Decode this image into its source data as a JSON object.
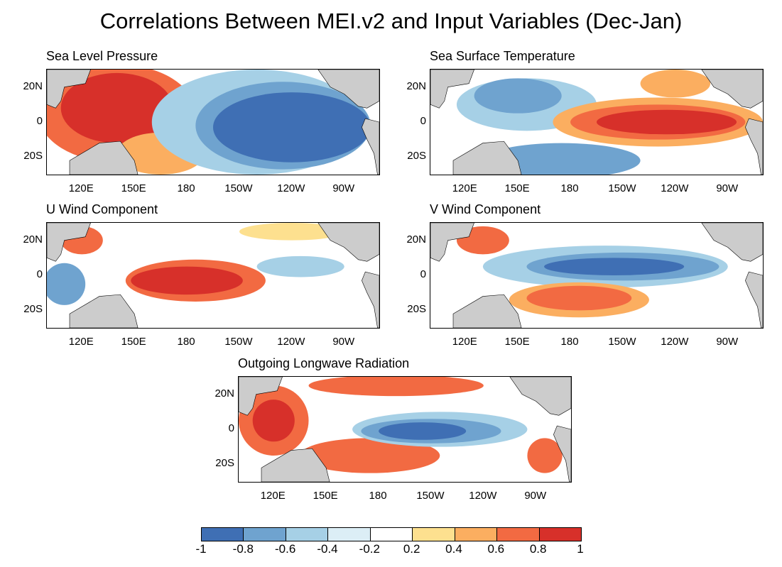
{
  "title": "Correlations Between MEI.v2 and Input Variables (Dec-Jan)",
  "colorbar": {
    "colors": [
      "#3f6fb4",
      "#6fa3cf",
      "#a6d0e6",
      "#dceef6",
      "#ffffff",
      "#fde08f",
      "#fbae60",
      "#f26a42",
      "#d7302a"
    ],
    "tick_labels": [
      "-1",
      "-0.8",
      "-0.6",
      "-0.4",
      "-0.2",
      "0.2",
      "0.4",
      "0.6",
      "0.8",
      "1"
    ]
  },
  "land_color": "#cccccc",
  "axes": {
    "y_labels": [
      "20N",
      "0",
      "20S"
    ],
    "x_labels": [
      "120E",
      "150E",
      "180",
      "150W",
      "120W",
      "90W"
    ]
  },
  "panels": [
    {
      "id": "slp",
      "title": "Sea Level Pressure",
      "pattern": [
        {
          "lon": 140,
          "lat": 5,
          "rlon": 45,
          "rlat": 28,
          "color": "#f26a42"
        },
        {
          "lon": 140,
          "lat": 8,
          "rlon": 32,
          "rlat": 20,
          "color": "#d7302a"
        },
        {
          "lon": 165,
          "lat": -18,
          "rlon": 25,
          "rlat": 12,
          "color": "#fbae60"
        },
        {
          "lon": 220,
          "lat": 0,
          "rlon": 60,
          "rlat": 30,
          "color": "#a6d0e6"
        },
        {
          "lon": 235,
          "lat": -2,
          "rlon": 50,
          "rlat": 25,
          "color": "#6fa3cf"
        },
        {
          "lon": 240,
          "lat": -3,
          "rlon": 45,
          "rlat": 20,
          "color": "#3f6fb4"
        }
      ]
    },
    {
      "id": "sst",
      "title": "Sea Surface Temperature",
      "pattern": [
        {
          "lon": 155,
          "lat": 10,
          "rlon": 40,
          "rlat": 15,
          "color": "#a6d0e6"
        },
        {
          "lon": 150,
          "lat": 15,
          "rlon": 25,
          "rlat": 10,
          "color": "#6fa3cf"
        },
        {
          "lon": 175,
          "lat": -22,
          "rlon": 45,
          "rlat": 10,
          "color": "#6fa3cf"
        },
        {
          "lon": 230,
          "lat": 0,
          "rlon": 60,
          "rlat": 14,
          "color": "#fbae60"
        },
        {
          "lon": 230,
          "lat": 0,
          "rlon": 50,
          "rlat": 10,
          "color": "#f26a42"
        },
        {
          "lon": 235,
          "lat": 0,
          "rlon": 40,
          "rlat": 7,
          "color": "#d7302a"
        },
        {
          "lon": 240,
          "lat": 22,
          "rlon": 20,
          "rlat": 8,
          "color": "#fbae60"
        }
      ]
    },
    {
      "id": "uwind",
      "title": "U Wind Component",
      "pattern": [
        {
          "lon": 120,
          "lat": 20,
          "rlon": 12,
          "rlat": 8,
          "color": "#f26a42"
        },
        {
          "lon": 110,
          "lat": -5,
          "rlon": 12,
          "rlat": 12,
          "color": "#6fa3cf"
        },
        {
          "lon": 185,
          "lat": -3,
          "rlon": 40,
          "rlat": 12,
          "color": "#f26a42"
        },
        {
          "lon": 180,
          "lat": -3,
          "rlon": 32,
          "rlat": 8,
          "color": "#d7302a"
        },
        {
          "lon": 245,
          "lat": 5,
          "rlon": 25,
          "rlat": 6,
          "color": "#a6d0e6"
        },
        {
          "lon": 240,
          "lat": 25,
          "rlon": 30,
          "rlat": 5,
          "color": "#fde08f"
        }
      ]
    },
    {
      "id": "vwind",
      "title": "V Wind Component",
      "pattern": [
        {
          "lon": 200,
          "lat": 5,
          "rlon": 70,
          "rlat": 12,
          "color": "#a6d0e6"
        },
        {
          "lon": 210,
          "lat": 5,
          "rlon": 55,
          "rlat": 8,
          "color": "#6fa3cf"
        },
        {
          "lon": 205,
          "lat": 5,
          "rlon": 40,
          "rlat": 5,
          "color": "#3f6fb4"
        },
        {
          "lon": 185,
          "lat": -14,
          "rlon": 40,
          "rlat": 10,
          "color": "#fbae60"
        },
        {
          "lon": 185,
          "lat": -13,
          "rlon": 30,
          "rlat": 7,
          "color": "#f26a42"
        },
        {
          "lon": 130,
          "lat": 20,
          "rlon": 15,
          "rlat": 8,
          "color": "#f26a42"
        }
      ]
    },
    {
      "id": "olr",
      "title": "Outgoing Longwave Radiation",
      "pattern": [
        {
          "lon": 120,
          "lat": 5,
          "rlon": 20,
          "rlat": 20,
          "color": "#f26a42"
        },
        {
          "lon": 120,
          "lat": 5,
          "rlon": 12,
          "rlat": 12,
          "color": "#d7302a"
        },
        {
          "lon": 175,
          "lat": -15,
          "rlon": 40,
          "rlat": 10,
          "color": "#f26a42"
        },
        {
          "lon": 190,
          "lat": 25,
          "rlon": 50,
          "rlat": 6,
          "color": "#f26a42"
        },
        {
          "lon": 215,
          "lat": 0,
          "rlon": 50,
          "rlat": 10,
          "color": "#a6d0e6"
        },
        {
          "lon": 210,
          "lat": -1,
          "rlon": 40,
          "rlat": 7,
          "color": "#6fa3cf"
        },
        {
          "lon": 205,
          "lat": -1,
          "rlon": 25,
          "rlat": 5,
          "color": "#3f6fb4"
        },
        {
          "lon": 275,
          "lat": -15,
          "rlon": 10,
          "rlat": 10,
          "color": "#f26a42"
        }
      ]
    }
  ]
}
